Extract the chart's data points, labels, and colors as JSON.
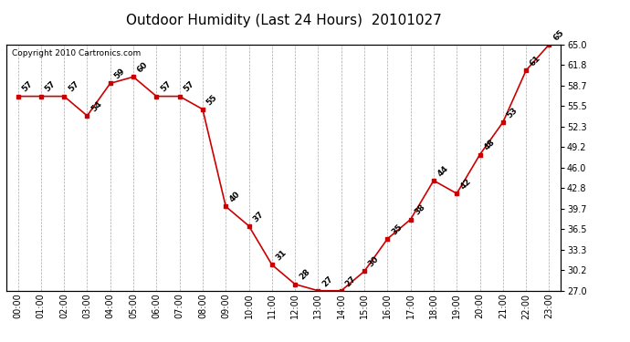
{
  "title": "Outdoor Humidity (Last 24 Hours)  20101027",
  "copyright_text": "Copyright 2010 Cartronics.com",
  "hours": [
    0,
    1,
    2,
    3,
    4,
    5,
    6,
    7,
    8,
    9,
    10,
    11,
    12,
    13,
    14,
    15,
    16,
    17,
    18,
    19,
    20,
    21,
    22,
    23
  ],
  "x_labels": [
    "00:00",
    "01:00",
    "02:00",
    "03:00",
    "04:00",
    "05:00",
    "06:00",
    "07:00",
    "08:00",
    "09:00",
    "10:00",
    "11:00",
    "12:00",
    "13:00",
    "14:00",
    "15:00",
    "16:00",
    "17:00",
    "18:00",
    "19:00",
    "20:00",
    "21:00",
    "22:00",
    "23:00"
  ],
  "values": [
    57,
    57,
    57,
    54,
    59,
    60,
    57,
    57,
    55,
    40,
    37,
    31,
    28,
    27,
    27,
    30,
    35,
    38,
    44,
    42,
    48,
    53,
    61,
    65
  ],
  "ylim": [
    27.0,
    65.0
  ],
  "yticks": [
    27.0,
    30.2,
    33.3,
    36.5,
    39.7,
    42.8,
    46.0,
    49.2,
    52.3,
    55.5,
    58.7,
    61.8,
    65.0
  ],
  "line_color": "#cc0000",
  "marker_color": "#cc0000",
  "bg_color": "#ffffff",
  "grid_color": "#aaaaaa",
  "title_fontsize": 11,
  "label_fontsize": 6.5,
  "tick_fontsize": 7,
  "copyright_fontsize": 6.5
}
